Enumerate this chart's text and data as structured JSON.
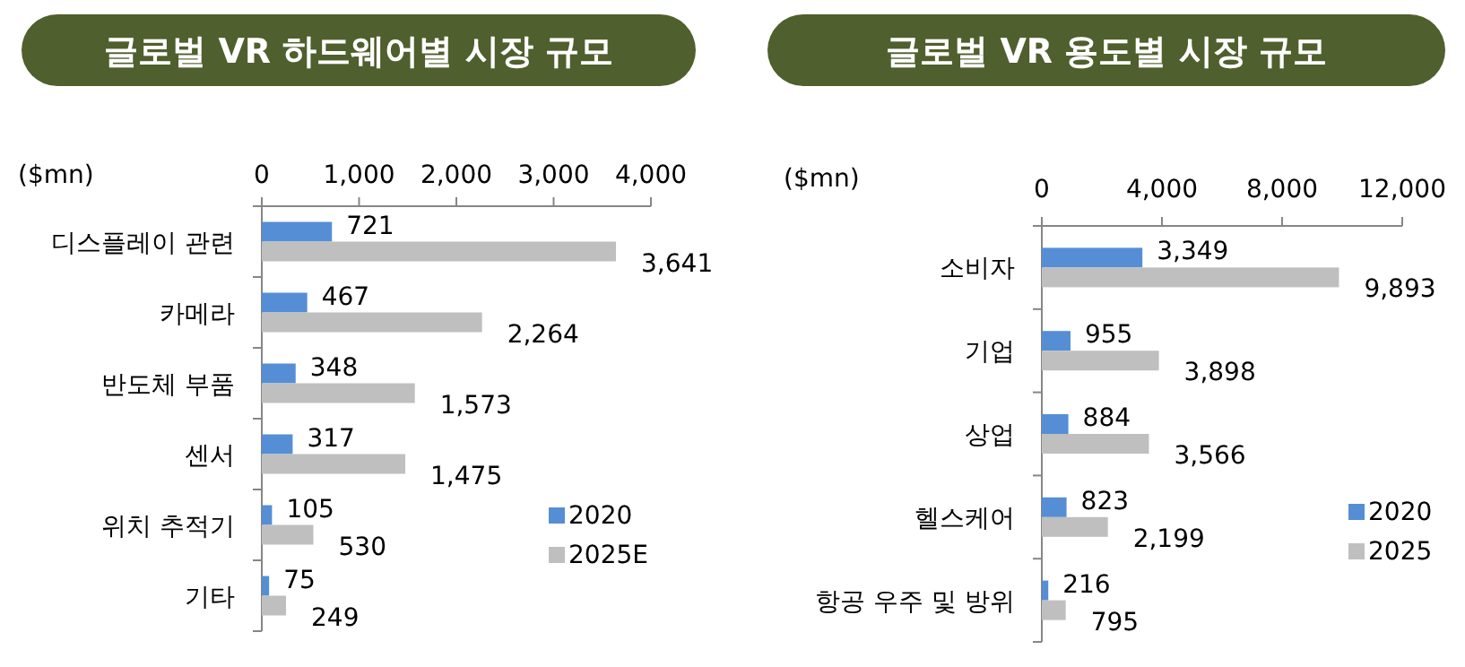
{
  "chart_data": [
    {
      "type": "bar",
      "orientation": "horizontal",
      "title": "글로벌 VR 하드웨어별 시장 규모",
      "xlabel": "($mn)",
      "categories": [
        "디스플레이 관련",
        "카메라",
        "반도체 부품",
        "센서",
        "위치 추적기",
        "기타"
      ],
      "series": [
        {
          "name": "2020",
          "color": "#558ed5",
          "values": [
            721,
            467,
            348,
            317,
            105,
            75
          ],
          "value_labels": [
            "721",
            "467",
            "348",
            "317",
            "105",
            "75"
          ]
        },
        {
          "name": "2025E",
          "color": "#bfbfbf",
          "values": [
            3641,
            2264,
            1573,
            1475,
            530,
            249
          ],
          "value_labels": [
            "3,641",
            "2,264",
            "1,573",
            "1,475",
            "530",
            "249"
          ]
        }
      ],
      "xlim": [
        0,
        4000
      ],
      "xticks": [
        0,
        {
          "value": 1000,
          "label": "1,000"
        },
        {
          "value": 2000,
          "label": "2,000"
        },
        {
          "value": 3000,
          "label": "3,000"
        },
        {
          "value": 4000,
          "label": "4,000"
        }
      ],
      "legend": "bottom right",
      "grid": false
    },
    {
      "type": "bar",
      "orientation": "horizontal",
      "title": "글로벌 VR 용도별 시장 규모",
      "xlabel": "($mn)",
      "categories": [
        "소비자",
        "기업",
        "상업",
        "헬스케어",
        "항공 우주 및 방위"
      ],
      "series": [
        {
          "name": "2020",
          "color": "#558ed5",
          "values": [
            3349,
            955,
            884,
            823,
            216
          ],
          "value_labels": [
            "3,349",
            "955",
            "884",
            "823",
            "216"
          ]
        },
        {
          "name": "2025",
          "color": "#bfbfbf",
          "values": [
            9893,
            3898,
            3566,
            2199,
            795
          ],
          "value_labels": [
            "9,893",
            "3,898",
            "3,566",
            "2,199",
            "795"
          ]
        }
      ],
      "xlim": [
        0,
        12000
      ],
      "xticks": [
        0,
        {
          "value": 4000,
          "label": "4,000"
        },
        {
          "value": 8000,
          "label": "8,000"
        },
        {
          "value": 12000,
          "label": "12,000"
        }
      ],
      "legend": "bottom right",
      "grid": false
    }
  ]
}
